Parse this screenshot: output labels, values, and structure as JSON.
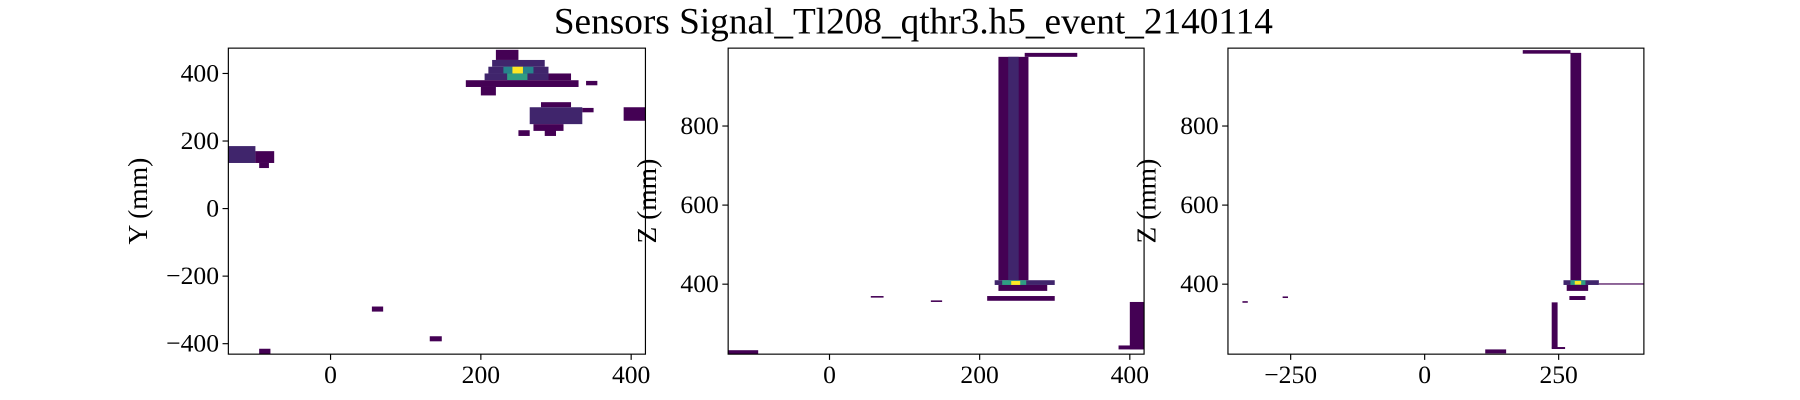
{
  "title": "Sensors Signal_Tl208_qthr3.h5_event_2140114",
  "chart_data": [
    {
      "type": "hist2d",
      "ylabel": "Y (mm)",
      "colormap": "viridis",
      "xlim": [
        -136,
        419
      ],
      "ylim": [
        -431,
        475
      ],
      "xticks": [
        0,
        200,
        400
      ],
      "yticks": [
        {
          "value": -400,
          "label": "−400"
        },
        {
          "value": -200,
          "label": "−200"
        },
        0,
        200,
        400
      ],
      "cells": [
        {
          "x": [
            220,
            250
          ],
          "y": [
            440,
            470
          ],
          "value": 1
        },
        {
          "x": [
            215,
            285
          ],
          "y": [
            420,
            440
          ],
          "value": 2
        },
        {
          "x": [
            210,
            290
          ],
          "y": [
            400,
            420
          ],
          "value": 2
        },
        {
          "x": [
            230,
            270
          ],
          "y": [
            400,
            420
          ],
          "value": 5
        },
        {
          "x": [
            242,
            256
          ],
          "y": [
            395,
            420
          ],
          "value": 10
        },
        {
          "x": [
            205,
            290
          ],
          "y": [
            380,
            400
          ],
          "value": 2
        },
        {
          "x": [
            235,
            262
          ],
          "y": [
            380,
            400
          ],
          "value": 6
        },
        {
          "x": [
            290,
            320
          ],
          "y": [
            380,
            400
          ],
          "value": 1
        },
        {
          "x": [
            180,
            330
          ],
          "y": [
            360,
            380
          ],
          "value": 1
        },
        {
          "x": [
            340,
            355
          ],
          "y": [
            365,
            378
          ],
          "value": 1
        },
        {
          "x": [
            200,
            220
          ],
          "y": [
            335,
            360
          ],
          "value": 1
        },
        {
          "x": [
            280,
            320
          ],
          "y": [
            300,
            315
          ],
          "value": 1
        },
        {
          "x": [
            265,
            335
          ],
          "y": [
            250,
            300
          ],
          "value": 2
        },
        {
          "x": [
            335,
            350
          ],
          "y": [
            285,
            298
          ],
          "value": 1
        },
        {
          "x": [
            270,
            310
          ],
          "y": [
            230,
            250
          ],
          "value": 1
        },
        {
          "x": [
            250,
            265
          ],
          "y": [
            215,
            232
          ],
          "value": 1
        },
        {
          "x": [
            285,
            300
          ],
          "y": [
            215,
            232
          ],
          "value": 1
        },
        {
          "x": [
            390,
            419
          ],
          "y": [
            260,
            300
          ],
          "value": 1
        },
        {
          "x": [
            -136,
            -100
          ],
          "y": [
            135,
            185
          ],
          "value": 2
        },
        {
          "x": [
            -100,
            -75
          ],
          "y": [
            135,
            170
          ],
          "value": 1
        },
        {
          "x": [
            -95,
            -82
          ],
          "y": [
            120,
            135
          ],
          "value": 1
        },
        {
          "x": [
            55,
            70
          ],
          "y": [
            -305,
            -290
          ],
          "value": 1
        },
        {
          "x": [
            132,
            148
          ],
          "y": [
            -393,
            -378
          ],
          "value": 1
        },
        {
          "x": [
            -95,
            -80
          ],
          "y": [
            -431,
            -415
          ],
          "value": 1
        }
      ]
    },
    {
      "type": "hist2d",
      "ylabel": "Z (mm)",
      "colormap": "viridis",
      "xlim": [
        -135,
        419
      ],
      "ylim": [
        223,
        997
      ],
      "xticks": [
        0,
        200,
        400
      ],
      "yticks": [
        400,
        600,
        800
      ],
      "cells": [
        {
          "x": [
            225,
            265
          ],
          "y": [
            410,
            975
          ],
          "value": 1
        },
        {
          "x": [
            238,
            252
          ],
          "y": [
            410,
            975
          ],
          "value": 2
        },
        {
          "x": [
            260,
            330
          ],
          "y": [
            975,
            985
          ],
          "value": 1
        },
        {
          "x": [
            220,
            300
          ],
          "y": [
            398,
            410
          ],
          "value": 2
        },
        {
          "x": [
            230,
            262
          ],
          "y": [
            398,
            410
          ],
          "value": 6
        },
        {
          "x": [
            242,
            254
          ],
          "y": [
            398,
            408
          ],
          "value": 10
        },
        {
          "x": [
            225,
            290
          ],
          "y": [
            383,
            398
          ],
          "value": 1
        },
        {
          "x": [
            210,
            300
          ],
          "y": [
            358,
            370
          ],
          "value": 1
        },
        {
          "x": [
            55,
            72
          ],
          "y": [
            366,
            370
          ],
          "value": 1
        },
        {
          "x": [
            135,
            150
          ],
          "y": [
            355,
            359
          ],
          "value": 1
        },
        {
          "x": [
            -135,
            -95
          ],
          "y": [
            223,
            233
          ],
          "value": 1
        },
        {
          "x": [
            400,
            419
          ],
          "y": [
            235,
            355
          ],
          "value": 1
        },
        {
          "x": [
            385,
            419
          ],
          "y": [
            235,
            245
          ],
          "value": 1
        }
      ]
    },
    {
      "type": "hist2d",
      "ylabel": "Z (mm)",
      "colormap": "viridis",
      "xlim": [
        -367,
        409
      ],
      "ylim": [
        223,
        997
      ],
      "xticks": [
        {
          "value": -250,
          "label": "−250"
        },
        0,
        250
      ],
      "yticks": [
        400,
        600,
        800
      ],
      "cells": [
        {
          "x": [
            272,
            292
          ],
          "y": [
            410,
            985
          ],
          "value": 1
        },
        {
          "x": [
            183,
            272
          ],
          "y": [
            983,
            992
          ],
          "value": 1
        },
        {
          "x": [
            259,
            325
          ],
          "y": [
            398,
            410
          ],
          "value": 2
        },
        {
          "x": [
            272,
            300
          ],
          "y": [
            398,
            410
          ],
          "value": 6
        },
        {
          "x": [
            280,
            292
          ],
          "y": [
            399,
            408
          ],
          "value": 10
        },
        {
          "x": [
            265,
            305
          ],
          "y": [
            383,
            398
          ],
          "value": 1
        },
        {
          "x": [
            270,
            300
          ],
          "y": [
            360,
            370
          ],
          "value": 1
        },
        {
          "x": [
            237,
            248
          ],
          "y": [
            240,
            354
          ],
          "value": 1
        },
        {
          "x": [
            237,
            262
          ],
          "y": [
            236,
            241
          ],
          "value": 1
        },
        {
          "x": [
            113,
            152
          ],
          "y": [
            225,
            235
          ],
          "value": 1
        },
        {
          "x": [
            -340,
            -330
          ],
          "y": [
            353,
            357
          ],
          "value": 1
        },
        {
          "x": [
            -265,
            -255
          ],
          "y": [
            365,
            369
          ],
          "value": 1
        },
        {
          "x": [
            325,
            409
          ],
          "y": [
            399,
            402
          ],
          "value": 1
        }
      ]
    }
  ]
}
